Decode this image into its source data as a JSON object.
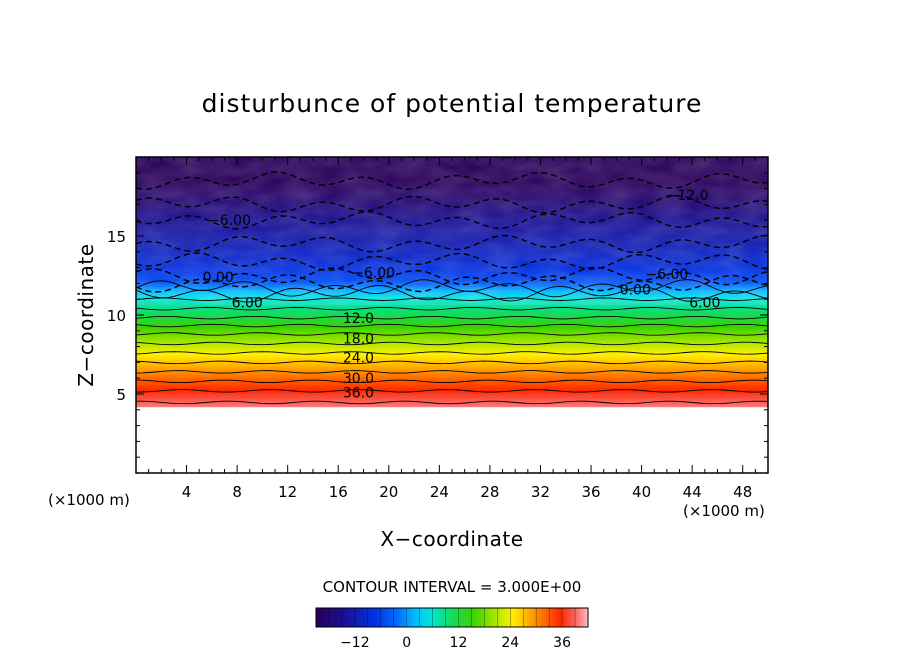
{
  "chart_data": {
    "type": "heatmap",
    "title": "disturbunce of potential temperature",
    "xlabel": "X−coordinate",
    "ylabel": "Z−coordinate",
    "x_unit_left": "(×1000 m)",
    "x_unit_right": "(×1000 m)",
    "xlim": [
      0,
      50
    ],
    "ylim": [
      0,
      20
    ],
    "x_ticks": [
      4,
      8,
      12,
      16,
      20,
      24,
      28,
      32,
      36,
      40,
      44,
      48
    ],
    "y_ticks": [
      5,
      10,
      15
    ],
    "contour_interval_text": "CONTOUR INTERVAL = 3.000E+00",
    "colorbar_ticks": [
      -12,
      0,
      12,
      24,
      36
    ],
    "colorbar_tick_labels": [
      "−12",
      "0",
      "12",
      "24",
      "36"
    ],
    "colorbar_range": [
      -21,
      42
    ],
    "data_bottom": 4.2,
    "contour_labels": [
      {
        "text": "−6.00",
        "x": 7.4,
        "z": 16.0
      },
      {
        "text": "−12.0",
        "x": 43.6,
        "z": 17.6
      },
      {
        "text": "−6.00",
        "x": 18.8,
        "z": 12.7
      },
      {
        "text": "−6.00",
        "x": 42.0,
        "z": 12.6
      },
      {
        "text": "0.00",
        "x": 6.5,
        "z": 12.4
      },
      {
        "text": "0.00",
        "x": 39.5,
        "z": 11.6
      },
      {
        "text": "6.00",
        "x": 8.8,
        "z": 10.8
      },
      {
        "text": "6.00",
        "x": 45.0,
        "z": 10.8
      },
      {
        "text": "12.0",
        "x": 17.6,
        "z": 9.8
      },
      {
        "text": "18.0",
        "x": 17.6,
        "z": 8.5
      },
      {
        "text": "24.0",
        "x": 17.6,
        "z": 7.3
      },
      {
        "text": "30.0",
        "x": 17.6,
        "z": 6.0
      },
      {
        "text": "36.0",
        "x": 17.6,
        "z": 5.1
      }
    ],
    "value_profile": {
      "z": [
        4.2,
        5.0,
        6.0,
        7.0,
        8.0,
        9.0,
        10.0,
        11.0,
        11.6,
        12.2,
        13.0,
        14.5,
        16.0,
        17.0,
        18.5,
        20.0
      ],
      "theta": [
        40,
        37,
        32,
        27,
        22,
        17,
        11,
        6,
        1,
        -5,
        -8,
        -12,
        -15,
        -18,
        -21,
        -21
      ]
    },
    "grid": false,
    "legend": "colorbar-bottom"
  }
}
